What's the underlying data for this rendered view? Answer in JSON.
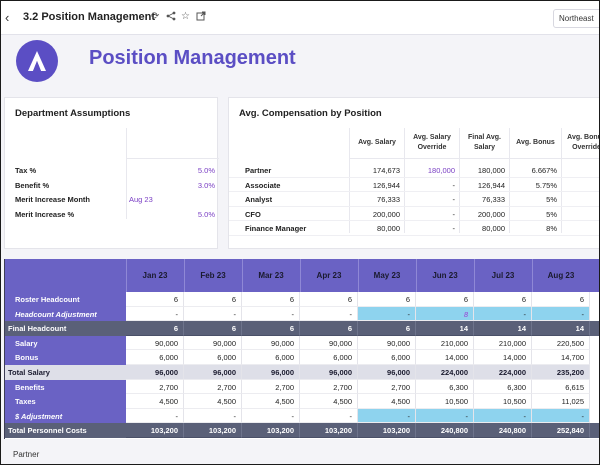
{
  "topbar": {
    "title": "3.2 Position Management",
    "right_button": "Northeast"
  },
  "header": {
    "title": "Position Management"
  },
  "dept": {
    "title": "Department Assumptions",
    "rows": [
      {
        "label": "Tax %",
        "value": "5.0%"
      },
      {
        "label": "Benefit %",
        "value": "3.0%"
      },
      {
        "label": "Merit Increase Month",
        "value": "Aug 23"
      },
      {
        "label": "Merit Increase %",
        "value": "5.0%"
      }
    ]
  },
  "comp": {
    "title": "Avg. Compensation by Position",
    "headers": [
      "Avg. Salary",
      "Avg. Salary Override",
      "Final Avg. Salary",
      "Avg. Bonus",
      "Avg. Bonus Override"
    ],
    "rows": [
      {
        "pos": "Partner",
        "avg": "174,673",
        "ovr": "180,000",
        "final": "180,000",
        "bonus": "6.667%"
      },
      {
        "pos": "Associate",
        "avg": "126,944",
        "ovr": "-",
        "final": "126,944",
        "bonus": "5.75%"
      },
      {
        "pos": "Analyst",
        "avg": "76,333",
        "ovr": "-",
        "final": "76,333",
        "bonus": "5%"
      },
      {
        "pos": "CFO",
        "avg": "200,000",
        "ovr": "-",
        "final": "200,000",
        "bonus": "5%"
      },
      {
        "pos": "Finance Manager",
        "avg": "80,000",
        "ovr": "-",
        "final": "80,000",
        "bonus": "8%"
      }
    ]
  },
  "grid": {
    "months": [
      "Jan 23",
      "Feb 23",
      "Mar 23",
      "Apr 23",
      "May 23",
      "Jun 23",
      "Jul 23",
      "Aug 23"
    ],
    "rows": [
      {
        "label": "Roster Headcount",
        "style": "normal",
        "values": [
          "6",
          "6",
          "6",
          "6",
          "6",
          "6",
          "6",
          "6"
        ]
      },
      {
        "label": "Headcount Adjustment",
        "style": "italic",
        "values": [
          "-",
          "-",
          "-",
          "-",
          "-",
          "8",
          "-",
          "-"
        ]
      },
      {
        "label": "Final Headcount",
        "style": "total",
        "values": [
          "6",
          "6",
          "6",
          "6",
          "6",
          "14",
          "14",
          "14"
        ]
      },
      {
        "label": "Salary",
        "style": "normal",
        "values": [
          "90,000",
          "90,000",
          "90,000",
          "90,000",
          "90,000",
          "210,000",
          "210,000",
          "220,500"
        ]
      },
      {
        "label": "Bonus",
        "style": "normal",
        "values": [
          "6,000",
          "6,000",
          "6,000",
          "6,000",
          "6,000",
          "14,000",
          "14,000",
          "14,700"
        ]
      },
      {
        "label": "Total Salary",
        "style": "sub",
        "values": [
          "96,000",
          "96,000",
          "96,000",
          "96,000",
          "96,000",
          "224,000",
          "224,000",
          "235,200"
        ]
      },
      {
        "label": "Benefits",
        "style": "normal",
        "values": [
          "2,700",
          "2,700",
          "2,700",
          "2,700",
          "2,700",
          "6,300",
          "6,300",
          "6,615"
        ]
      },
      {
        "label": "Taxes",
        "style": "normal",
        "values": [
          "4,500",
          "4,500",
          "4,500",
          "4,500",
          "4,500",
          "10,500",
          "10,500",
          "11,025"
        ]
      },
      {
        "label": "$ Adjustment",
        "style": "italic",
        "values": [
          "-",
          "-",
          "-",
          "-",
          "-",
          "-",
          "-",
          "-"
        ]
      },
      {
        "label": "Total Personnel Costs",
        "style": "total",
        "values": [
          "103,200",
          "103,200",
          "103,200",
          "103,200",
          "103,200",
          "240,800",
          "240,800",
          "252,840"
        ]
      }
    ]
  },
  "section": {
    "title": "Partner"
  },
  "colors": {
    "accent": "#5b4ec4",
    "grid_header": "#6a62c4",
    "total_row": "#5a6078",
    "adjust": "#8ed3ee"
  }
}
